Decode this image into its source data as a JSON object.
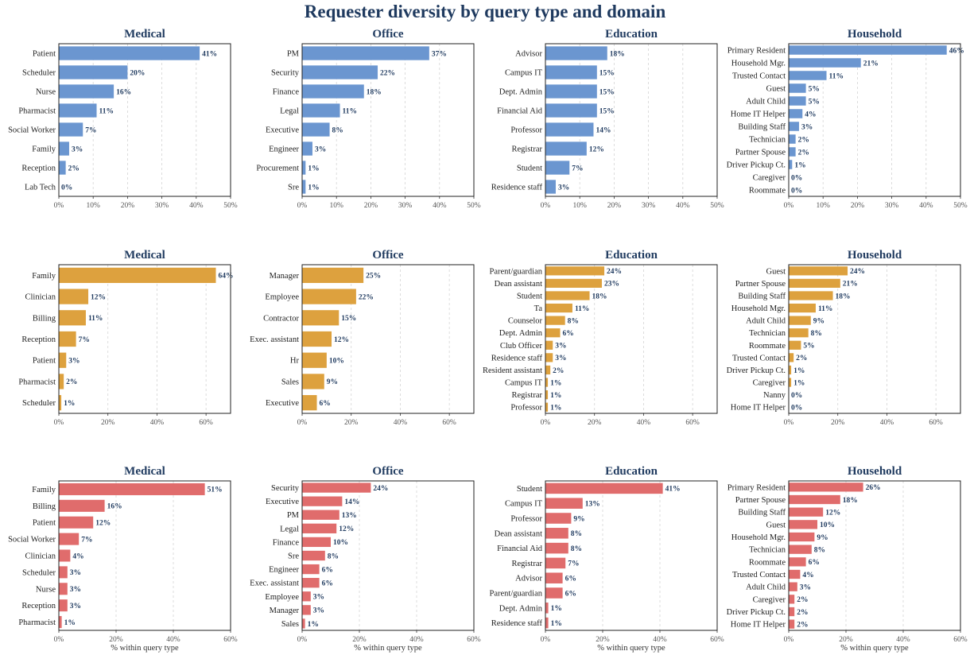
{
  "title": "Requester diversity by query type and domain",
  "colors": {
    "row1": "#6b96d0",
    "row2": "#dda13e",
    "row3": "#e06c6c",
    "title": "#1f3a5f"
  },
  "chart_data": [
    {
      "type": "bar",
      "orientation": "horizontal",
      "title": "Medical",
      "xlabel": "",
      "xlim": [
        0,
        50
      ],
      "xticks": [
        0,
        10,
        20,
        30,
        40,
        50
      ],
      "tick_suffix": "%",
      "grid": true,
      "categories": [
        "Patient",
        "Scheduler",
        "Nurse",
        "Pharmacist",
        "Social Worker",
        "Family",
        "Reception",
        "Lab Tech"
      ],
      "values": [
        41,
        20,
        16,
        11,
        7,
        3,
        2,
        0
      ]
    },
    {
      "type": "bar",
      "orientation": "horizontal",
      "title": "Office",
      "xlabel": "",
      "xlim": [
        0,
        50
      ],
      "xticks": [
        0,
        10,
        20,
        30,
        40,
        50
      ],
      "tick_suffix": "%",
      "grid": true,
      "categories": [
        "PM",
        "Security",
        "Finance",
        "Legal",
        "Executive",
        "Engineer",
        "Procurement",
        "Sre"
      ],
      "values": [
        37,
        22,
        18,
        11,
        8,
        3,
        1,
        1
      ]
    },
    {
      "type": "bar",
      "orientation": "horizontal",
      "title": "Education",
      "xlabel": "",
      "xlim": [
        0,
        50
      ],
      "xticks": [
        0,
        10,
        20,
        30,
        40,
        50
      ],
      "tick_suffix": "%",
      "grid": true,
      "categories": [
        "Advisor",
        "Campus IT",
        "Dept. Admin",
        "Financial Aid",
        "Professor",
        "Registrar",
        "Student",
        "Residence staff"
      ],
      "values": [
        18,
        15,
        15,
        15,
        14,
        12,
        7,
        3
      ]
    },
    {
      "type": "bar",
      "orientation": "horizontal",
      "title": "Household",
      "xlabel": "",
      "xlim": [
        0,
        50
      ],
      "xticks": [
        0,
        10,
        20,
        30,
        40,
        50
      ],
      "tick_suffix": "%",
      "grid": true,
      "categories": [
        "Primary Resident",
        "Household Mgr.",
        "Trusted Contact",
        "Guest",
        "Adult Child",
        "Home IT Helper",
        "Building Staff",
        "Technician",
        "Partner Spouse",
        "Driver Pickup Ct.",
        "Caregiver",
        "Roommate"
      ],
      "values": [
        46,
        21,
        11,
        5,
        5,
        4,
        3,
        2,
        2,
        1,
        0,
        0
      ]
    },
    {
      "type": "bar",
      "orientation": "horizontal",
      "title": "Medical",
      "xlabel": "",
      "xlim": [
        0,
        70
      ],
      "xticks": [
        0,
        20,
        40,
        60
      ],
      "tick_suffix": "%",
      "grid": true,
      "categories": [
        "Family",
        "Clinician",
        "Billing",
        "Reception",
        "Patient",
        "Pharmacist",
        "Scheduler"
      ],
      "values": [
        64,
        12,
        11,
        7,
        3,
        2,
        1
      ]
    },
    {
      "type": "bar",
      "orientation": "horizontal",
      "title": "Office",
      "xlabel": "",
      "xlim": [
        0,
        70
      ],
      "xticks": [
        0,
        20,
        40,
        60
      ],
      "tick_suffix": "%",
      "grid": true,
      "categories": [
        "Manager",
        "Employee",
        "Contractor",
        "Exec. assistant",
        "Hr",
        "Sales",
        "Executive"
      ],
      "values": [
        25,
        22,
        15,
        12,
        10,
        9,
        6
      ]
    },
    {
      "type": "bar",
      "orientation": "horizontal",
      "title": "Education",
      "xlabel": "",
      "xlim": [
        0,
        70
      ],
      "xticks": [
        0,
        20,
        40,
        60
      ],
      "tick_suffix": "%",
      "grid": true,
      "categories": [
        "Parent/guardian",
        "Dean assistant",
        "Student",
        "Ta",
        "Counselor",
        "Dept. Admin",
        "Club Officer",
        "Residence staff",
        "Resident assistant",
        "Campus IT",
        "Registrar",
        "Professor"
      ],
      "values": [
        24,
        23,
        18,
        11,
        8,
        6,
        3,
        3,
        2,
        1,
        1,
        1
      ]
    },
    {
      "type": "bar",
      "orientation": "horizontal",
      "title": "Household",
      "xlabel": "",
      "xlim": [
        0,
        70
      ],
      "xticks": [
        0,
        20,
        40,
        60
      ],
      "tick_suffix": "%",
      "grid": true,
      "categories": [
        "Guest",
        "Partner Spouse",
        "Building Staff",
        "Household Mgr.",
        "Adult Child",
        "Technician",
        "Roommate",
        "Trusted Contact",
        "Driver Pickup Ct.",
        "Caregiver",
        "Nanny",
        "Home IT Helper"
      ],
      "values": [
        24,
        21,
        18,
        11,
        9,
        8,
        5,
        2,
        1,
        1,
        0,
        0
      ]
    },
    {
      "type": "bar",
      "orientation": "horizontal",
      "title": "Medical",
      "xlabel": "% within query type",
      "xlim": [
        0,
        60
      ],
      "xticks": [
        0,
        20,
        40,
        60
      ],
      "tick_suffix": "%",
      "grid": true,
      "categories": [
        "Family",
        "Billing",
        "Patient",
        "Social Worker",
        "Clinician",
        "Scheduler",
        "Nurse",
        "Reception",
        "Pharmacist"
      ],
      "values": [
        51,
        16,
        12,
        7,
        4,
        3,
        3,
        3,
        1
      ]
    },
    {
      "type": "bar",
      "orientation": "horizontal",
      "title": "Office",
      "xlabel": "% within query type",
      "xlim": [
        0,
        60
      ],
      "xticks": [
        0,
        20,
        40,
        60
      ],
      "tick_suffix": "%",
      "grid": true,
      "categories": [
        "Security",
        "Executive",
        "PM",
        "Legal",
        "Finance",
        "Sre",
        "Engineer",
        "Exec. assistant",
        "Employee",
        "Manager",
        "Sales"
      ],
      "values": [
        24,
        14,
        13,
        12,
        10,
        8,
        6,
        6,
        3,
        3,
        1
      ]
    },
    {
      "type": "bar",
      "orientation": "horizontal",
      "title": "Education",
      "xlabel": "% within query type",
      "xlim": [
        0,
        60
      ],
      "xticks": [
        0,
        20,
        40,
        60
      ],
      "tick_suffix": "%",
      "grid": true,
      "categories": [
        "Student",
        "Campus IT",
        "Professor",
        "Dean assistant",
        "Financial Aid",
        "Registrar",
        "Advisor",
        "Parent/guardian",
        "Dept. Admin",
        "Residence staff"
      ],
      "values": [
        41,
        13,
        9,
        8,
        8,
        7,
        6,
        6,
        1,
        1
      ]
    },
    {
      "type": "bar",
      "orientation": "horizontal",
      "title": "Household",
      "xlabel": "% within query type",
      "xlim": [
        0,
        60
      ],
      "xticks": [
        0,
        20,
        40,
        60
      ],
      "tick_suffix": "%",
      "grid": true,
      "categories": [
        "Primary Resident",
        "Partner Spouse",
        "Building Staff",
        "Guest",
        "Household Mgr.",
        "Technician",
        "Roommate",
        "Trusted Contact",
        "Adult Child",
        "Caregiver",
        "Driver Pickup Ct.",
        "Home IT Helper"
      ],
      "values": [
        26,
        18,
        12,
        10,
        9,
        8,
        6,
        4,
        3,
        2,
        2,
        2
      ]
    }
  ]
}
